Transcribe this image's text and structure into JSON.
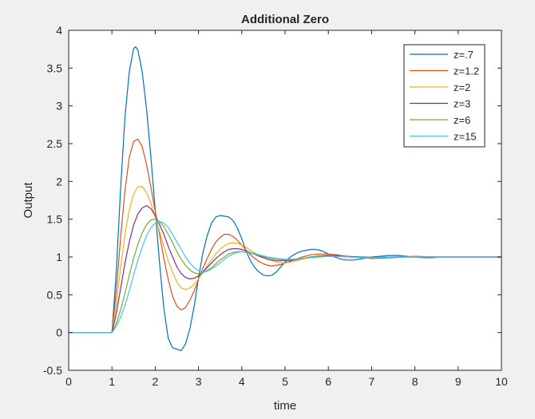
{
  "chart_data": {
    "type": "line",
    "title": "Additional Zero",
    "xlabel": "time",
    "ylabel": "Output",
    "xlim": [
      0,
      10
    ],
    "ylim": [
      -0.5,
      4
    ],
    "xticks": [
      0,
      1,
      2,
      3,
      4,
      5,
      6,
      7,
      8,
      9,
      10
    ],
    "yticks": [
      -0.5,
      0,
      0.5,
      1,
      1.5,
      2,
      2.5,
      3,
      3.5,
      4
    ],
    "grid": false,
    "legend_position": "top-right",
    "series": [
      {
        "name": "z=.7",
        "color": "#0072bd",
        "x": [
          0,
          1,
          1.1,
          1.2,
          1.3,
          1.4,
          1.5,
          1.55,
          1.6,
          1.7,
          1.8,
          1.9,
          2.0,
          2.1,
          2.2,
          2.3,
          2.4,
          2.5,
          2.6,
          2.7,
          2.8,
          2.9,
          3.0,
          3.1,
          3.2,
          3.3,
          3.4,
          3.5,
          3.6,
          3.7,
          3.8,
          3.9,
          4.0,
          4.1,
          4.2,
          4.3,
          4.4,
          4.5,
          4.6,
          4.7,
          4.8,
          4.9,
          5.0,
          5.1,
          5.2,
          5.3,
          5.4,
          5.5,
          5.6,
          5.7,
          5.8,
          5.9,
          6.0,
          6.1,
          6.2,
          6.3,
          6.4,
          6.6,
          6.8,
          7.0,
          7.2,
          7.4,
          7.6,
          7.8,
          8.0,
          8.2,
          8.4,
          8.6,
          8.8,
          9.0,
          9.5,
          10
        ],
        "y": [
          0,
          0,
          0.8,
          1.9,
          2.85,
          3.45,
          3.76,
          3.78,
          3.74,
          3.45,
          2.95,
          2.32,
          1.62,
          0.92,
          0.32,
          -0.08,
          -0.2,
          -0.22,
          -0.24,
          -0.15,
          0.05,
          0.35,
          0.72,
          1.05,
          1.28,
          1.45,
          1.53,
          1.55,
          1.54,
          1.53,
          1.48,
          1.38,
          1.24,
          1.08,
          0.95,
          0.86,
          0.8,
          0.76,
          0.75,
          0.76,
          0.8,
          0.87,
          0.93,
          0.99,
          1.03,
          1.06,
          1.08,
          1.09,
          1.1,
          1.1,
          1.09,
          1.07,
          1.04,
          1.01,
          0.99,
          0.97,
          0.96,
          0.96,
          0.98,
          1.0,
          1.01,
          1.02,
          1.02,
          1.01,
          1.0,
          0.99,
          0.99,
          1.0,
          1.0,
          1.0,
          1.0,
          1.0
        ]
      },
      {
        "name": "z=1.2",
        "color": "#d95319",
        "x": [
          0,
          1,
          1.1,
          1.2,
          1.3,
          1.4,
          1.5,
          1.6,
          1.7,
          1.8,
          1.9,
          2.0,
          2.1,
          2.2,
          2.3,
          2.4,
          2.5,
          2.6,
          2.7,
          2.8,
          2.9,
          3.0,
          3.1,
          3.2,
          3.3,
          3.4,
          3.5,
          3.6,
          3.7,
          3.8,
          3.9,
          4.0,
          4.1,
          4.2,
          4.3,
          4.4,
          4.5,
          4.6,
          4.7,
          4.8,
          4.9,
          5.0,
          5.2,
          5.4,
          5.6,
          5.8,
          6.0,
          6.2,
          6.4,
          6.6,
          6.8,
          7.0,
          7.5,
          8.0,
          8.5,
          9.0,
          10
        ],
        "y": [
          0,
          0,
          0.55,
          1.25,
          1.88,
          2.32,
          2.53,
          2.56,
          2.46,
          2.22,
          1.92,
          1.6,
          1.3,
          0.98,
          0.7,
          0.48,
          0.35,
          0.3,
          0.33,
          0.43,
          0.55,
          0.7,
          0.85,
          0.98,
          1.1,
          1.2,
          1.26,
          1.3,
          1.3,
          1.27,
          1.22,
          1.16,
          1.09,
          1.03,
          0.98,
          0.94,
          0.91,
          0.89,
          0.88,
          0.89,
          0.9,
          0.92,
          0.96,
          1.0,
          1.03,
          1.04,
          1.04,
          1.03,
          1.01,
          1.0,
          0.99,
          0.98,
          0.99,
          1.01,
          1.0,
          1.0,
          1.0
        ]
      },
      {
        "name": "z=2",
        "color": "#edb120",
        "x": [
          0,
          1,
          1.1,
          1.2,
          1.3,
          1.4,
          1.5,
          1.6,
          1.7,
          1.8,
          1.9,
          2.0,
          2.1,
          2.2,
          2.3,
          2.4,
          2.5,
          2.6,
          2.7,
          2.8,
          2.9,
          3.0,
          3.1,
          3.2,
          3.3,
          3.4,
          3.5,
          3.6,
          3.7,
          3.8,
          3.9,
          4.0,
          4.1,
          4.2,
          4.4,
          4.6,
          4.8,
          5.0,
          5.2,
          5.4,
          5.6,
          5.8,
          6.0,
          6.2,
          6.4,
          6.8,
          7.2,
          7.6,
          8.0,
          8.5,
          9.0,
          10
        ],
        "y": [
          0,
          0,
          0.38,
          0.85,
          1.3,
          1.62,
          1.83,
          1.93,
          1.93,
          1.85,
          1.71,
          1.53,
          1.34,
          1.14,
          0.95,
          0.8,
          0.67,
          0.59,
          0.57,
          0.59,
          0.64,
          0.71,
          0.8,
          0.88,
          0.96,
          1.04,
          1.1,
          1.15,
          1.18,
          1.19,
          1.18,
          1.16,
          1.13,
          1.09,
          1.02,
          0.97,
          0.93,
          0.92,
          0.94,
          0.97,
          1.0,
          1.02,
          1.03,
          1.02,
          1.01,
          0.99,
          0.99,
          1.0,
          1.0,
          1.0,
          1.0,
          1.0
        ]
      },
      {
        "name": "z=3",
        "color": "#7e2f8e",
        "x": [
          0,
          1,
          1.1,
          1.2,
          1.3,
          1.4,
          1.5,
          1.6,
          1.7,
          1.8,
          1.9,
          2.0,
          2.1,
          2.2,
          2.3,
          2.4,
          2.5,
          2.6,
          2.7,
          2.8,
          2.9,
          3.0,
          3.1,
          3.2,
          3.3,
          3.4,
          3.5,
          3.6,
          3.7,
          3.8,
          3.9,
          4.0,
          4.2,
          4.4,
          4.6,
          4.8,
          5.0,
          5.2,
          5.4,
          5.6,
          5.8,
          6.0,
          6.2,
          6.4,
          6.8,
          7.2,
          7.6,
          8.0,
          8.5,
          9.0,
          10
        ],
        "y": [
          0,
          0,
          0.25,
          0.58,
          0.92,
          1.2,
          1.42,
          1.57,
          1.65,
          1.68,
          1.64,
          1.55,
          1.43,
          1.3,
          1.14,
          1.0,
          0.87,
          0.78,
          0.73,
          0.71,
          0.72,
          0.75,
          0.8,
          0.86,
          0.92,
          0.98,
          1.03,
          1.07,
          1.1,
          1.11,
          1.11,
          1.1,
          1.06,
          1.01,
          0.97,
          0.95,
          0.95,
          0.96,
          0.98,
          1.0,
          1.01,
          1.02,
          1.02,
          1.01,
          1.0,
          0.99,
          1.0,
          1.0,
          1.0,
          1.0,
          1.0
        ]
      },
      {
        "name": "z=6",
        "color": "#77ac30",
        "x": [
          0,
          1,
          1.1,
          1.2,
          1.3,
          1.4,
          1.5,
          1.6,
          1.7,
          1.8,
          1.9,
          2.0,
          2.1,
          2.2,
          2.3,
          2.4,
          2.5,
          2.6,
          2.7,
          2.8,
          2.9,
          3.0,
          3.1,
          3.2,
          3.3,
          3.4,
          3.5,
          3.6,
          3.7,
          3.8,
          3.9,
          4.0,
          4.2,
          4.4,
          4.6,
          4.8,
          5.0,
          5.2,
          5.4,
          5.6,
          5.8,
          6.0,
          6.2,
          6.5,
          7.0,
          7.5,
          8.0,
          8.5,
          9.0,
          10
        ],
        "y": [
          0,
          0,
          0.12,
          0.3,
          0.52,
          0.76,
          0.98,
          1.17,
          1.32,
          1.43,
          1.49,
          1.5,
          1.47,
          1.4,
          1.3,
          1.19,
          1.07,
          0.97,
          0.89,
          0.83,
          0.79,
          0.78,
          0.79,
          0.82,
          0.86,
          0.91,
          0.96,
          1.0,
          1.04,
          1.06,
          1.07,
          1.07,
          1.05,
          1.02,
          0.99,
          0.97,
          0.96,
          0.97,
          0.98,
          1.0,
          1.01,
          1.01,
          1.01,
          1.0,
          0.99,
          1.0,
          1.0,
          1.0,
          1.0,
          1.0
        ]
      },
      {
        "name": "z=15",
        "color": "#4dbeee",
        "x": [
          0,
          1,
          1.1,
          1.2,
          1.3,
          1.4,
          1.5,
          1.6,
          1.7,
          1.8,
          1.9,
          2.0,
          2.1,
          2.2,
          2.3,
          2.4,
          2.5,
          2.6,
          2.7,
          2.8,
          2.9,
          3.0,
          3.1,
          3.2,
          3.3,
          3.4,
          3.5,
          3.6,
          3.7,
          3.8,
          3.9,
          4.0,
          4.2,
          4.4,
          4.6,
          4.8,
          5.0,
          5.2,
          5.4,
          5.6,
          5.8,
          6.0,
          6.2,
          6.5,
          7.0,
          7.5,
          8.0,
          8.5,
          9.0,
          10
        ],
        "y": [
          0,
          0,
          0.08,
          0.2,
          0.36,
          0.55,
          0.76,
          0.96,
          1.13,
          1.28,
          1.39,
          1.45,
          1.47,
          1.45,
          1.39,
          1.3,
          1.2,
          1.1,
          1.0,
          0.92,
          0.86,
          0.82,
          0.8,
          0.81,
          0.84,
          0.88,
          0.92,
          0.97,
          1.01,
          1.04,
          1.06,
          1.07,
          1.06,
          1.03,
          1.0,
          0.98,
          0.97,
          0.97,
          0.98,
          0.99,
          1.0,
          1.01,
          1.01,
          1.0,
          0.99,
          1.0,
          1.0,
          1.0,
          1.0,
          1.0
        ]
      }
    ]
  }
}
